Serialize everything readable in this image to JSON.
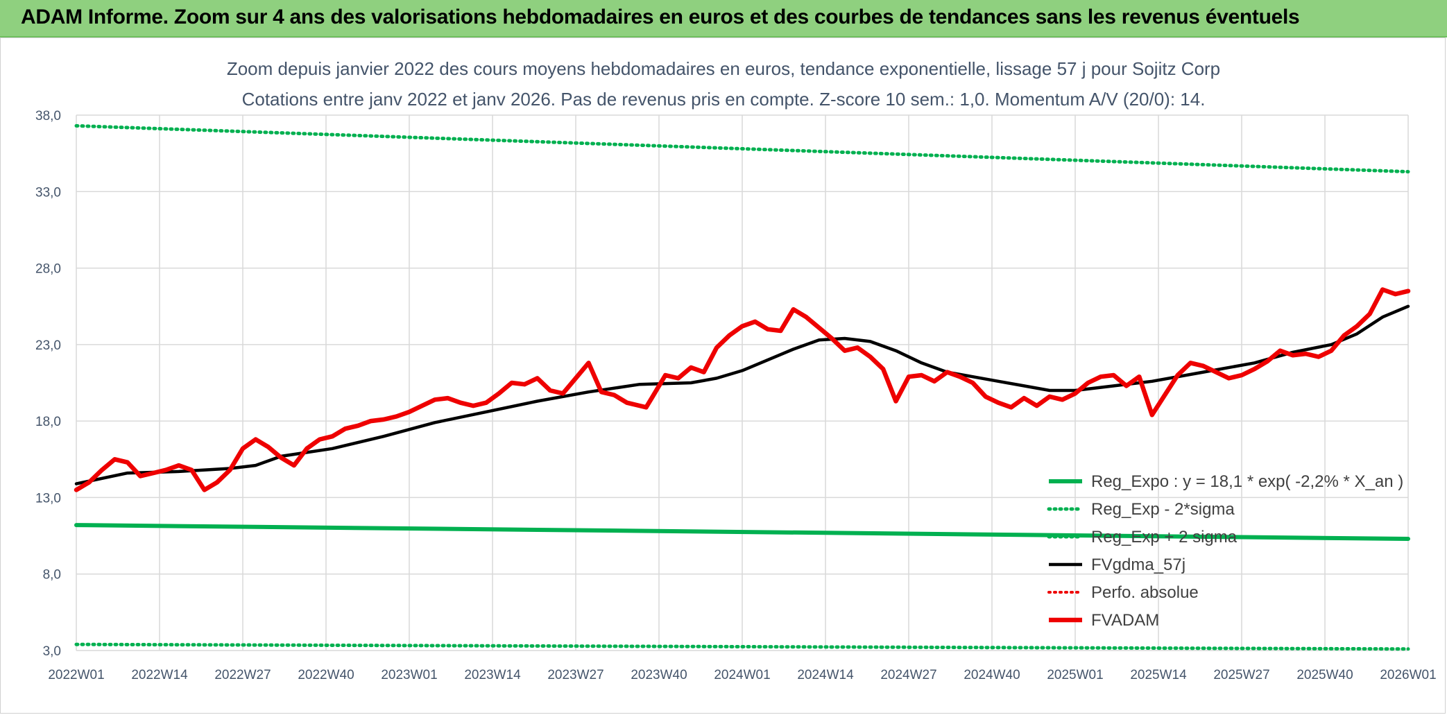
{
  "header": {
    "title": "ADAM Informe. Zoom sur 4 ans des valorisations hebdomadaires en euros et des courbes de tendances sans les revenus éventuels"
  },
  "colors": {
    "banner": "#8fd07f",
    "green": "#00b050",
    "red": "#ee0000",
    "black": "#000000",
    "grid": "#d9d9d9",
    "text": "#44546a"
  },
  "chart_data": {
    "type": "line",
    "title": "Zoom depuis janvier 2022 des cours moyens hebdomadaires en euros, tendance exponentielle, lissage 57 j pour Sojitz Corp",
    "subtitle": "Cotations entre janv 2022 et janv 2026. Pas de revenus pris en compte. Z-score 10 sem.: 1,0. Momentum A/V (20/0): 14.",
    "ylim": [
      3,
      38
    ],
    "yticks": [
      "3,0",
      "8,0",
      "13,0",
      "18,0",
      "23,0",
      "28,0",
      "33,0",
      "38,0"
    ],
    "yticks_values": [
      3,
      8,
      13,
      18,
      23,
      28,
      33,
      38
    ],
    "xlim": [
      0,
      208
    ],
    "xticks": [
      "2022W01",
      "2022W14",
      "2022W27",
      "2022W40",
      "2023W01",
      "2023W14",
      "2023W27",
      "2023W40",
      "2024W01",
      "2024W14",
      "2024W27",
      "2024W40",
      "2025W01",
      "2025W14",
      "2025W27",
      "2025W40",
      "2026W01"
    ],
    "xticks_values": [
      0,
      13,
      26,
      39,
      52,
      65,
      78,
      91,
      104,
      117,
      130,
      143,
      156,
      169,
      182,
      195,
      208
    ],
    "legend_position": "bottom-right",
    "series": [
      {
        "name": "Reg_Expo : y = 18,1 * exp( -2,2% *  X_an )",
        "style": "solid-green",
        "x": [
          0,
          208
        ],
        "values": [
          11.2,
          10.3
        ]
      },
      {
        "name": "Reg_Exp - 2*sigma",
        "style": "dotted-green",
        "x": [
          0,
          208
        ],
        "values": [
          3.4,
          3.1
        ]
      },
      {
        "name": "Reg_Exp + 2 sigma",
        "style": "dotted-green",
        "x": [
          0,
          208
        ],
        "values": [
          37.3,
          34.3
        ]
      },
      {
        "name": "FVgdma_57j",
        "style": "solid-black",
        "x": [
          0,
          8,
          16,
          24,
          28,
          32,
          40,
          48,
          56,
          64,
          72,
          80,
          88,
          96,
          100,
          104,
          112,
          116,
          120,
          124,
          128,
          132,
          136,
          140,
          144,
          148,
          152,
          156,
          160,
          168,
          176,
          184,
          190,
          196,
          200,
          204,
          208
        ],
        "values": [
          13.9,
          14.6,
          14.7,
          14.9,
          15.1,
          15.7,
          16.2,
          17.0,
          17.9,
          18.6,
          19.3,
          19.9,
          20.4,
          20.5,
          20.8,
          21.3,
          22.7,
          23.3,
          23.4,
          23.2,
          22.6,
          21.8,
          21.2,
          20.9,
          20.6,
          20.3,
          20.0,
          20.0,
          20.2,
          20.6,
          21.2,
          21.8,
          22.5,
          23.0,
          23.7,
          24.8,
          25.5
        ]
      },
      {
        "name": "Perfo. absolue",
        "style": "dotted-red",
        "x": [],
        "values": []
      },
      {
        "name": "FVADAM",
        "style": "solid-red",
        "x": [
          0,
          2,
          4,
          6,
          8,
          10,
          12,
          14,
          16,
          18,
          20,
          22,
          24,
          26,
          28,
          30,
          32,
          34,
          36,
          38,
          40,
          42,
          44,
          46,
          48,
          50,
          52,
          54,
          56,
          58,
          60,
          62,
          64,
          66,
          68,
          70,
          72,
          74,
          76,
          78,
          80,
          82,
          84,
          86,
          88,
          89,
          90,
          92,
          94,
          96,
          98,
          100,
          102,
          104,
          106,
          108,
          110,
          112,
          114,
          116,
          118,
          120,
          122,
          124,
          126,
          128,
          130,
          132,
          134,
          136,
          138,
          140,
          142,
          144,
          146,
          148,
          150,
          152,
          154,
          156,
          158,
          160,
          162,
          164,
          166,
          168,
          170,
          172,
          174,
          176,
          178,
          180,
          182,
          184,
          186,
          188,
          190,
          192,
          194,
          196,
          198,
          200,
          202,
          204,
          206,
          208
        ],
        "values": [
          13.5,
          14.0,
          14.8,
          15.5,
          15.3,
          14.4,
          14.6,
          14.8,
          15.1,
          14.8,
          13.5,
          14.0,
          14.8,
          16.2,
          16.8,
          16.3,
          15.6,
          15.1,
          16.2,
          16.8,
          17.0,
          17.5,
          17.7,
          18.0,
          18.1,
          18.3,
          18.6,
          19.0,
          19.4,
          19.5,
          19.2,
          19.0,
          19.2,
          19.8,
          20.5,
          20.4,
          20.8,
          20.0,
          19.8,
          20.8,
          21.8,
          19.9,
          19.7,
          19.2,
          19.0,
          18.9,
          19.6,
          21.0,
          20.8,
          21.5,
          21.2,
          22.8,
          23.6,
          24.2,
          24.5,
          24.0,
          23.9,
          25.3,
          24.8,
          24.1,
          23.4,
          22.6,
          22.8,
          22.2,
          21.4,
          19.3,
          20.9,
          21.0,
          20.6,
          21.2,
          20.9,
          20.5,
          19.6,
          19.2,
          18.9,
          19.5,
          19.0,
          19.6,
          19.4,
          19.8,
          20.5,
          20.9,
          21.0,
          20.3,
          20.9,
          18.4,
          19.7,
          21.0,
          21.8,
          21.6,
          21.2,
          20.8,
          21.0,
          21.4,
          21.9,
          22.6,
          22.3,
          22.4,
          22.2,
          22.6,
          23.6,
          24.2,
          25.0,
          26.6,
          26.3,
          26.5
        ]
      }
    ]
  }
}
